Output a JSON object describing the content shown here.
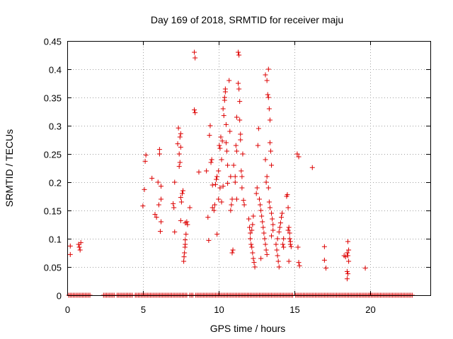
{
  "chart_data": {
    "type": "scatter",
    "title": "Day 169 of 2018, SRMTID for receiver maju",
    "xlabel": "GPS time / hours",
    "ylabel": "SRMTID / TECUs",
    "xlim": [
      0,
      24
    ],
    "ylim": [
      0,
      0.45
    ],
    "x_ticks": [
      0,
      5,
      10,
      15,
      20
    ],
    "y_ticks": [
      0,
      0.05,
      0.1,
      0.15,
      0.2,
      0.25,
      0.3,
      0.35,
      0.4,
      0.45
    ],
    "x_tick_labels": [
      "0",
      "5",
      "10",
      "15",
      "20"
    ],
    "y_tick_labels": [
      "0",
      "0.05",
      "0.1",
      "0.15",
      "0.2",
      "0.25",
      "0.3",
      "0.35",
      "0.4",
      "0.45"
    ],
    "grid": true,
    "marker": "+",
    "color": "#dd0000",
    "series": [
      {
        "name": "SRMTID",
        "points": [
          [
            0.2,
            0.087
          ],
          [
            0.2,
            0.072
          ],
          [
            0.75,
            0.09
          ],
          [
            0.8,
            0.085
          ],
          [
            0.85,
            0.08
          ],
          [
            0.9,
            0.093
          ],
          [
            5.0,
            0.158
          ],
          [
            5.1,
            0.187
          ],
          [
            5.15,
            0.237
          ],
          [
            5.2,
            0.248
          ],
          [
            5.6,
            0.207
          ],
          [
            5.8,
            0.143
          ],
          [
            5.9,
            0.138
          ],
          [
            6.0,
            0.2
          ],
          [
            6.05,
            0.16
          ],
          [
            6.1,
            0.25
          ],
          [
            6.1,
            0.258
          ],
          [
            6.15,
            0.113
          ],
          [
            6.2,
            0.13
          ],
          [
            6.2,
            0.17
          ],
          [
            6.2,
            0.193
          ],
          [
            7.0,
            0.162
          ],
          [
            7.05,
            0.155
          ],
          [
            7.1,
            0.2
          ],
          [
            7.1,
            0.112
          ],
          [
            7.3,
            0.268
          ],
          [
            7.35,
            0.296
          ],
          [
            7.4,
            0.25
          ],
          [
            7.4,
            0.228
          ],
          [
            7.45,
            0.235
          ],
          [
            7.45,
            0.28
          ],
          [
            7.5,
            0.262
          ],
          [
            7.5,
            0.286
          ],
          [
            7.5,
            0.173
          ],
          [
            7.5,
            0.132
          ],
          [
            7.55,
            0.165
          ],
          [
            7.6,
            0.18
          ],
          [
            7.65,
            0.185
          ],
          [
            7.7,
            0.06
          ],
          [
            7.72,
            0.068
          ],
          [
            7.75,
            0.075
          ],
          [
            7.78,
            0.085
          ],
          [
            7.8,
            0.09
          ],
          [
            7.8,
            0.098
          ],
          [
            7.85,
            0.108
          ],
          [
            7.8,
            0.128
          ],
          [
            7.9,
            0.13
          ],
          [
            7.95,
            0.125
          ],
          [
            8.1,
            0.155
          ],
          [
            8.4,
            0.43
          ],
          [
            8.45,
            0.42
          ],
          [
            8.4,
            0.328
          ],
          [
            8.45,
            0.323
          ],
          [
            8.7,
            0.218
          ],
          [
            9.2,
            0.22
          ],
          [
            9.3,
            0.138
          ],
          [
            9.35,
            0.097
          ],
          [
            9.4,
            0.283
          ],
          [
            9.45,
            0.3
          ],
          [
            9.5,
            0.235
          ],
          [
            9.55,
            0.24
          ],
          [
            9.6,
            0.195
          ],
          [
            9.6,
            0.155
          ],
          [
            9.7,
            0.15
          ],
          [
            9.75,
            0.16
          ],
          [
            9.8,
            0.196
          ],
          [
            9.85,
            0.205
          ],
          [
            9.9,
            0.21
          ],
          [
            9.9,
            0.108
          ],
          [
            10.0,
            0.17
          ],
          [
            10.0,
            0.22
          ],
          [
            10.05,
            0.265
          ],
          [
            10.1,
            0.26
          ],
          [
            10.1,
            0.19
          ],
          [
            10.15,
            0.28
          ],
          [
            10.2,
            0.24
          ],
          [
            10.2,
            0.165
          ],
          [
            10.25,
            0.273
          ],
          [
            10.3,
            0.33
          ],
          [
            10.3,
            0.193
          ],
          [
            10.35,
            0.318
          ],
          [
            10.4,
            0.35
          ],
          [
            10.4,
            0.345
          ],
          [
            10.45,
            0.365
          ],
          [
            10.45,
            0.36
          ],
          [
            10.5,
            0.302
          ],
          [
            10.5,
            0.27
          ],
          [
            10.55,
            0.255
          ],
          [
            10.6,
            0.23
          ],
          [
            10.6,
            0.198
          ],
          [
            10.7,
            0.38
          ],
          [
            10.75,
            0.29
          ],
          [
            10.8,
            0.21
          ],
          [
            10.8,
            0.15
          ],
          [
            10.85,
            0.16
          ],
          [
            10.9,
            0.17
          ],
          [
            10.9,
            0.075
          ],
          [
            10.95,
            0.08
          ],
          [
            11.0,
            0.23
          ],
          [
            11.1,
            0.21
          ],
          [
            11.1,
            0.2
          ],
          [
            11.15,
            0.265
          ],
          [
            11.2,
            0.255
          ],
          [
            11.2,
            0.17
          ],
          [
            11.2,
            0.315
          ],
          [
            11.3,
            0.43
          ],
          [
            11.35,
            0.425
          ],
          [
            11.3,
            0.375
          ],
          [
            11.35,
            0.365
          ],
          [
            11.4,
            0.343
          ],
          [
            11.4,
            0.31
          ],
          [
            11.45,
            0.285
          ],
          [
            11.45,
            0.275
          ],
          [
            11.5,
            0.22
          ],
          [
            11.55,
            0.21
          ],
          [
            11.55,
            0.19
          ],
          [
            11.6,
            0.25
          ],
          [
            11.65,
            0.168
          ],
          [
            11.7,
            0.16
          ],
          [
            12.0,
            0.135
          ],
          [
            12.05,
            0.12
          ],
          [
            12.1,
            0.11
          ],
          [
            12.1,
            0.1
          ],
          [
            12.15,
            0.09
          ],
          [
            12.2,
            0.085
          ],
          [
            12.25,
            0.075
          ],
          [
            12.3,
            0.065
          ],
          [
            12.35,
            0.058
          ],
          [
            12.4,
            0.05
          ],
          [
            12.2,
            0.115
          ],
          [
            12.25,
            0.125
          ],
          [
            12.3,
            0.14
          ],
          [
            12.5,
            0.18
          ],
          [
            12.55,
            0.19
          ],
          [
            12.6,
            0.265
          ],
          [
            12.65,
            0.295
          ],
          [
            12.7,
            0.17
          ],
          [
            12.75,
            0.16
          ],
          [
            12.8,
            0.15
          ],
          [
            12.85,
            0.14
          ],
          [
            12.9,
            0.13
          ],
          [
            12.95,
            0.12
          ],
          [
            13.0,
            0.11
          ],
          [
            13.05,
            0.1
          ],
          [
            13.1,
            0.09
          ],
          [
            13.15,
            0.08
          ],
          [
            13.2,
            0.072
          ],
          [
            12.8,
            0.065
          ],
          [
            13.1,
            0.39
          ],
          [
            13.2,
            0.38
          ],
          [
            13.3,
            0.4
          ],
          [
            13.25,
            0.355
          ],
          [
            13.3,
            0.35
          ],
          [
            13.35,
            0.33
          ],
          [
            13.4,
            0.31
          ],
          [
            13.4,
            0.27
          ],
          [
            13.45,
            0.255
          ],
          [
            13.5,
            0.23
          ],
          [
            13.1,
            0.24
          ],
          [
            13.2,
            0.21
          ],
          [
            13.15,
            0.2
          ],
          [
            13.3,
            0.19
          ],
          [
            13.35,
            0.165
          ],
          [
            13.4,
            0.155
          ],
          [
            13.5,
            0.145
          ],
          [
            13.55,
            0.135
          ],
          [
            13.6,
            0.125
          ],
          [
            13.6,
            0.115
          ],
          [
            13.5,
            0.105
          ],
          [
            13.8,
            0.09
          ],
          [
            13.85,
            0.08
          ],
          [
            13.9,
            0.07
          ],
          [
            13.95,
            0.06
          ],
          [
            14.0,
            0.05
          ],
          [
            13.9,
            0.1
          ],
          [
            14.0,
            0.112
          ],
          [
            14.05,
            0.12
          ],
          [
            14.1,
            0.128
          ],
          [
            14.15,
            0.138
          ],
          [
            14.2,
            0.145
          ],
          [
            14.25,
            0.09
          ],
          [
            14.3,
            0.1
          ],
          [
            14.3,
            0.085
          ],
          [
            14.5,
            0.175
          ],
          [
            14.55,
            0.178
          ],
          [
            14.6,
            0.155
          ],
          [
            14.65,
            0.12
          ],
          [
            14.6,
            0.115
          ],
          [
            14.7,
            0.11
          ],
          [
            14.7,
            0.1
          ],
          [
            14.75,
            0.095
          ],
          [
            14.75,
            0.09
          ],
          [
            14.8,
            0.086
          ],
          [
            14.65,
            0.06
          ],
          [
            15.2,
            0.25
          ],
          [
            15.3,
            0.245
          ],
          [
            15.25,
            0.085
          ],
          [
            15.3,
            0.058
          ],
          [
            15.35,
            0.052
          ],
          [
            16.2,
            0.226
          ],
          [
            17.0,
            0.086
          ],
          [
            17.0,
            0.062
          ],
          [
            17.1,
            0.048
          ],
          [
            18.3,
            0.07
          ],
          [
            18.4,
            0.068
          ],
          [
            18.5,
            0.075
          ],
          [
            18.55,
            0.095
          ],
          [
            18.6,
            0.08
          ],
          [
            18.55,
            0.07
          ],
          [
            18.6,
            0.06
          ],
          [
            18.5,
            0.042
          ],
          [
            18.55,
            0.038
          ],
          [
            18.5,
            0.029
          ],
          [
            19.7,
            0.048
          ]
        ]
      }
    ],
    "zero_points_x": [
      0.1,
      0.2,
      0.3,
      0.4,
      0.5,
      0.6,
      0.7,
      0.8,
      0.9,
      1.0,
      1.1,
      1.2,
      1.3,
      1.4,
      1.5,
      2.4,
      2.5,
      2.6,
      2.7,
      2.8,
      2.9,
      3.0,
      3.1,
      3.3,
      3.4,
      3.5,
      3.6,
      3.7,
      3.8,
      3.9,
      4.0,
      4.1,
      4.2,
      4.3,
      4.5,
      4.6,
      4.7,
      4.8,
      4.9,
      5.0,
      5.1,
      5.2,
      5.3,
      5.4,
      5.5,
      5.6,
      5.7,
      5.8,
      5.9,
      6.0,
      6.1,
      6.2,
      6.3,
      6.4,
      6.5,
      6.6,
      6.7,
      6.8,
      6.9,
      7.0,
      7.1,
      7.2,
      7.3,
      7.4,
      7.5,
      7.6,
      7.7,
      7.8,
      7.9,
      8.1,
      8.2,
      8.3,
      8.5,
      8.6,
      8.7,
      8.8,
      8.9,
      9.0,
      9.1,
      9.2,
      9.3,
      9.4,
      9.5,
      9.6,
      9.7,
      9.8,
      9.9,
      10.0,
      10.1,
      10.2,
      10.3,
      10.4,
      10.5,
      10.6,
      10.7,
      10.8,
      10.9,
      11.0,
      11.1,
      11.2,
      11.3,
      11.4,
      11.5,
      11.6,
      11.7,
      11.8,
      11.9,
      12.0,
      12.1,
      12.2,
      12.3,
      12.4,
      12.5,
      12.6,
      12.7,
      12.8,
      12.9,
      13.0,
      13.1,
      13.2,
      13.3,
      13.4,
      13.5,
      13.6,
      13.7,
      13.8,
      13.9,
      14.0,
      14.1,
      14.2,
      14.3,
      14.4,
      14.5,
      14.6,
      14.7,
      14.8,
      14.9,
      15.1,
      15.2,
      15.3,
      15.4,
      15.5,
      15.6,
      15.7,
      15.8,
      15.9,
      16.0,
      16.1,
      16.2,
      16.3,
      16.4,
      16.5,
      16.6,
      16.7,
      16.8,
      16.9,
      17.0,
      17.1,
      17.2,
      17.3,
      17.4,
      17.5,
      17.6,
      17.7,
      17.8,
      17.9,
      18.0,
      18.1,
      18.2,
      18.3,
      18.4,
      18.5,
      18.6,
      18.7,
      18.8,
      18.9,
      19.0,
      19.1,
      19.2,
      19.3,
      19.4,
      19.5,
      19.6,
      19.7,
      19.8,
      19.9,
      20.0,
      20.1,
      20.2,
      20.3,
      20.4,
      20.5,
      20.6,
      20.7,
      20.8,
      20.9,
      21.0,
      21.1,
      21.2,
      21.3,
      21.4,
      21.5,
      21.6,
      21.7,
      21.8,
      21.9,
      22.0,
      22.1,
      22.2,
      22.3,
      22.4,
      22.5,
      22.6,
      22.7,
      22.8
    ]
  }
}
